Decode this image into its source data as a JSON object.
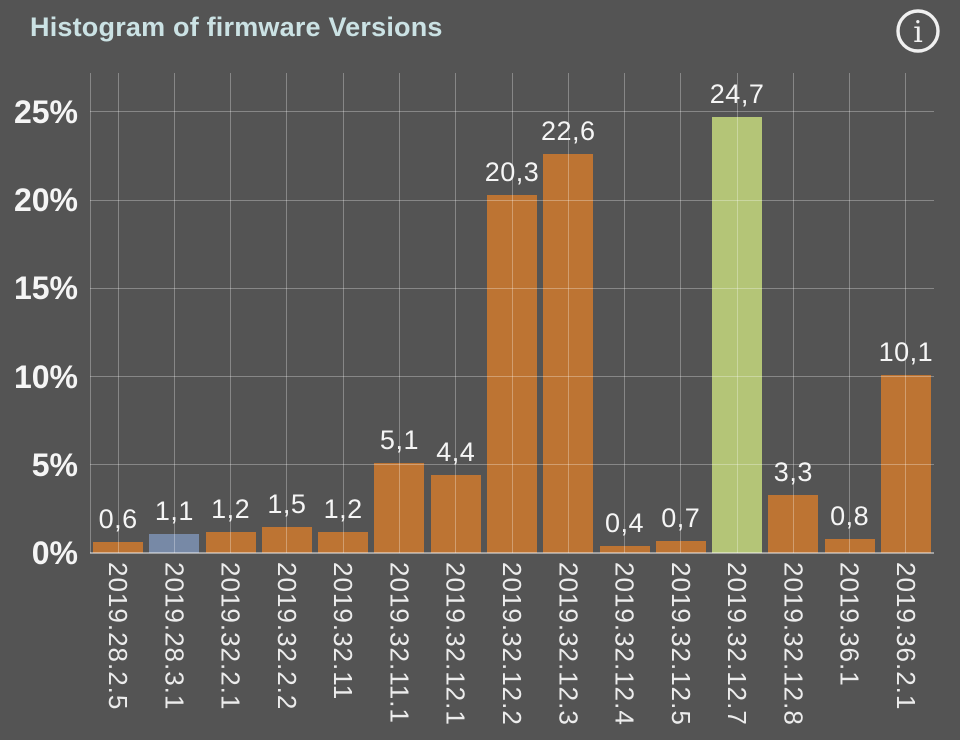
{
  "header": {
    "title": "Histogram of firmware Versions"
  },
  "icons": {
    "info": "i"
  },
  "colors": {
    "background": "#545454",
    "title": "#cbe2e4",
    "axis_text": "#f5f5f5",
    "tick_text": "#ececec",
    "value_text": "#f5f5f5",
    "grid": "rgba(255,255,255,0.30)",
    "baseline": "rgba(255,255,255,0.45)",
    "icon": "#f0f0f0",
    "bar_orange": "#bd7433",
    "bar_blue": "#7789a6",
    "bar_green": "#b4c577"
  },
  "chart_data": {
    "type": "bar",
    "title": "Histogram of firmware Versions",
    "xlabel": "",
    "ylabel": "",
    "categories": [
      "2019.28.2.5",
      "2019.28.3.1",
      "2019.32.2.1",
      "2019.32.2.2",
      "2019.32.11",
      "2019.32.11.1",
      "2019.32.12.1",
      "2019.32.12.2",
      "2019.32.12.3",
      "2019.32.12.4",
      "2019.32.12.5",
      "2019.32.12.7",
      "2019.32.12.8",
      "2019.36.1",
      "2019.36.2.1"
    ],
    "values": [
      0.6,
      1.1,
      1.2,
      1.5,
      1.2,
      5.1,
      4.4,
      20.3,
      22.6,
      0.4,
      0.7,
      24.7,
      3.3,
      0.8,
      10.1
    ],
    "value_labels": [
      "0,6",
      "1,1",
      "1,2",
      "1,5",
      "1,2",
      "5,1",
      "4,4",
      "20,3",
      "22,6",
      "0,4",
      "0,7",
      "24,7",
      "3,3",
      "0,8",
      "10,1"
    ],
    "bar_colors": [
      "orange",
      "blue",
      "orange",
      "orange",
      "orange",
      "orange",
      "orange",
      "orange",
      "orange",
      "orange",
      "orange",
      "green",
      "orange",
      "orange",
      "orange"
    ],
    "yticks": [
      0,
      5,
      10,
      15,
      20,
      25
    ],
    "ytick_labels": [
      "0%",
      "5%",
      "10%",
      "15%",
      "20%",
      "25%"
    ],
    "ylim": [
      0,
      27.2
    ],
    "grid": true,
    "legend": false
  }
}
